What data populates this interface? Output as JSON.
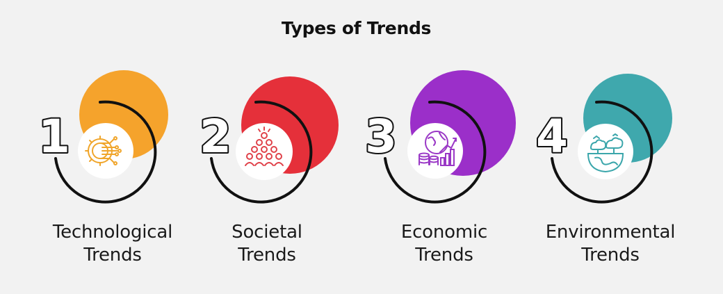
{
  "title": "Types of Trends",
  "items": [
    {
      "number": "1",
      "line1": "Technological",
      "line2": "Trends",
      "color": "#f5a32c",
      "icon": "gear-circuit-icon",
      "icon_color": "#f0a52a"
    },
    {
      "number": "2",
      "line1": "Societal",
      "line2": "Trends",
      "color": "#e5303a",
      "icon": "crowd-pyramid-icon",
      "icon_color": "#e0424a"
    },
    {
      "number": "3",
      "line1": "Economic",
      "line2": "Trends",
      "color": "#9b2fc9",
      "icon": "globe-coins-chart-icon",
      "icon_color": "#9a38c6"
    },
    {
      "number": "4",
      "line1": "Environmental",
      "line2": "Trends",
      "color": "#3fa8ad",
      "icon": "forest-land-icon",
      "icon_color": "#3ba6ab"
    }
  ]
}
